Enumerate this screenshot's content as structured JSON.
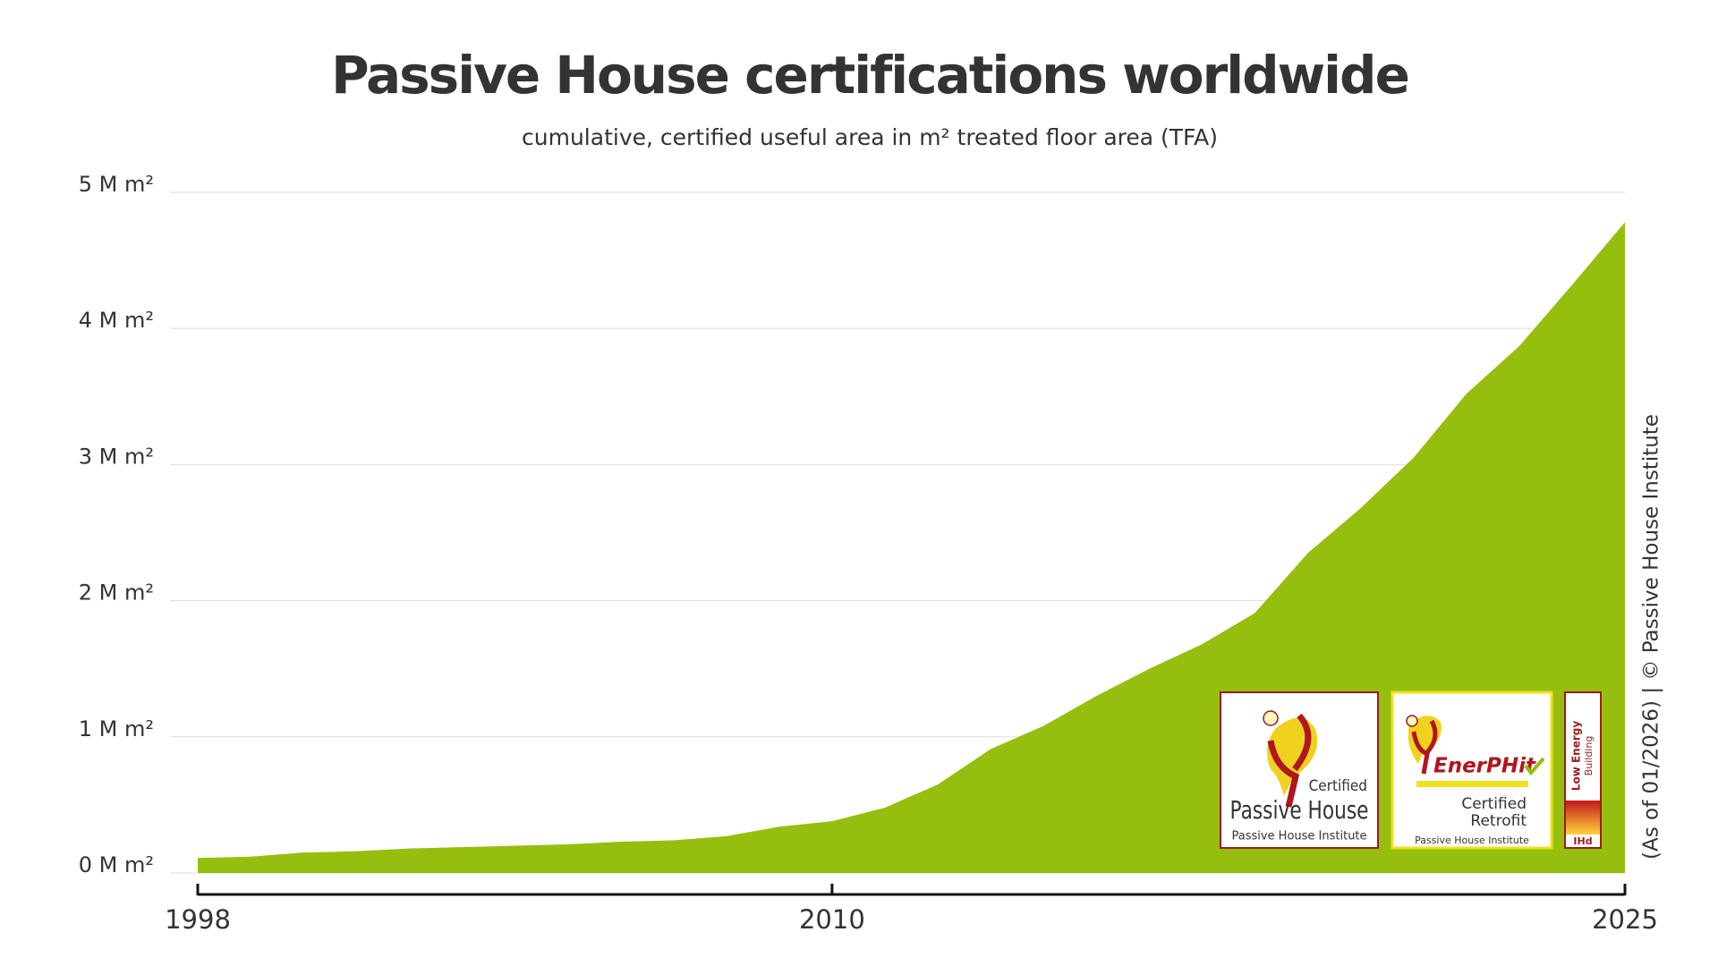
{
  "chart_data": {
    "type": "area",
    "title": "Passive House certifications worldwide",
    "subtitle": "cumulative, certified useful area in m² treated floor area (TFA)",
    "x": [
      1998,
      1999,
      2000,
      2001,
      2002,
      2003,
      2004,
      2005,
      2006,
      2007,
      2008,
      2009,
      2010,
      2011,
      2012,
      2013,
      2014,
      2015,
      2016,
      2017,
      2018,
      2019,
      2020,
      2021,
      2022,
      2023,
      2024,
      2025
    ],
    "series": [
      {
        "color": "#96be0e",
        "values": [
          0.11,
          0.12,
          0.15,
          0.16,
          0.18,
          0.19,
          0.2,
          0.21,
          0.23,
          0.24,
          0.27,
          0.34,
          0.38,
          0.48,
          0.65,
          0.91,
          1.08,
          1.3,
          1.5,
          1.68,
          1.91,
          2.35,
          2.68,
          3.05,
          3.52,
          3.87,
          4.32,
          4.78
        ]
      }
    ],
    "xlim": [
      1998,
      2025
    ],
    "xticks": [
      1998,
      2010,
      2025
    ],
    "ylim": [
      0,
      5
    ],
    "yticks": [
      {
        "value": 0,
        "label": "0 M m²"
      },
      {
        "value": 1,
        "label": "1 M m²"
      },
      {
        "value": 2,
        "label": "2 M m²"
      },
      {
        "value": 3,
        "label": "3 M m²"
      },
      {
        "value": 4,
        "label": "4 M m²"
      },
      {
        "value": 5,
        "label": "5 M m²"
      }
    ],
    "grid": true,
    "annotation": "(As of 01/2026) | © Passive House Institute",
    "badges": [
      {
        "lines": [
          "Certified",
          "Passive House",
          "Passive House Institute"
        ]
      },
      {
        "lines": [
          "EnerPHit",
          "Certified",
          "Retrofit",
          "Passive House Institute"
        ]
      },
      {
        "lines": [
          "Low Energy",
          "Building",
          "IHd"
        ]
      }
    ]
  }
}
